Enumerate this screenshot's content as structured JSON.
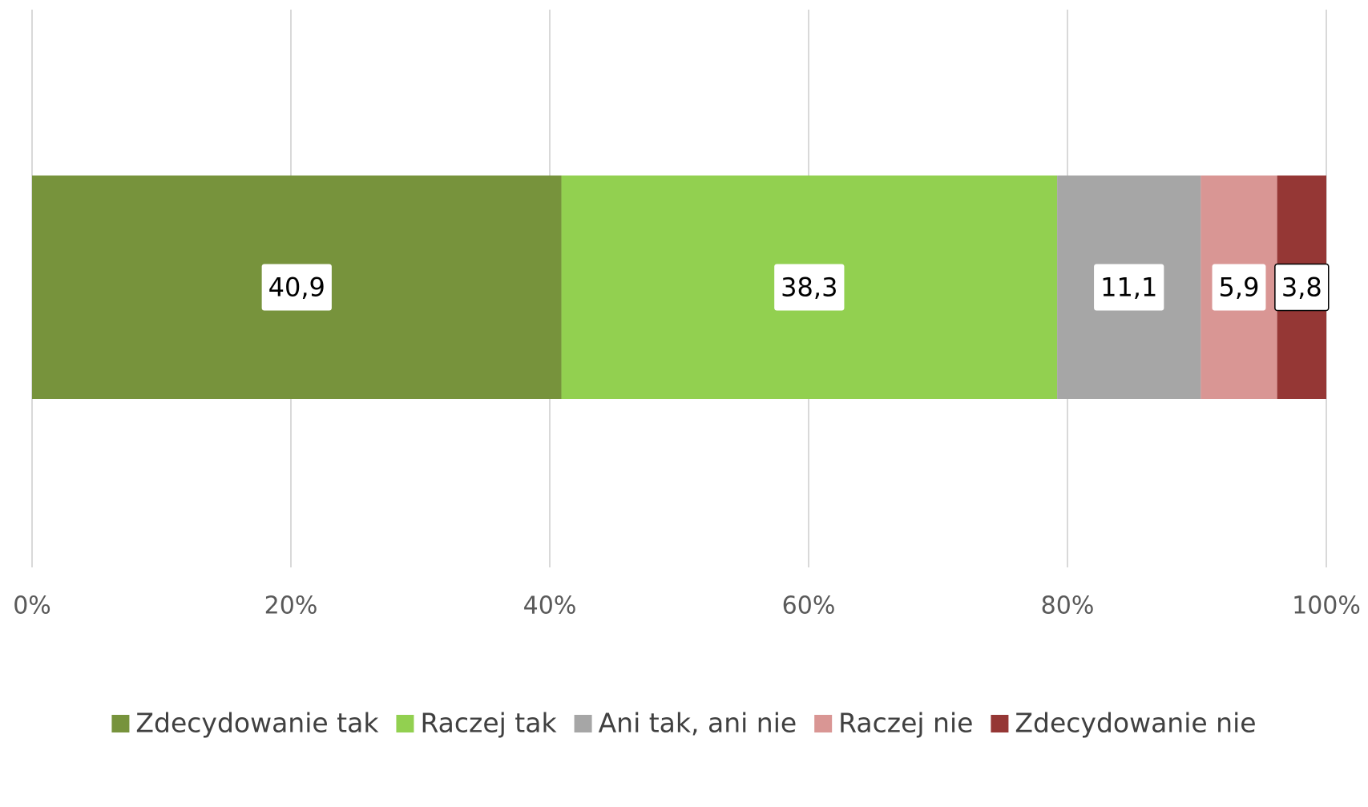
{
  "chart_data": {
    "type": "bar",
    "orientation": "horizontal",
    "stacked": true,
    "categories": [
      null
    ],
    "series": [
      {
        "name": "Zdecydowanie tak",
        "color": "#77933c",
        "values": [
          40.9
        ],
        "value_labels": [
          "40,9"
        ]
      },
      {
        "name": "Raczej tak",
        "color": "#92d050",
        "values": [
          38.3
        ],
        "value_labels": [
          "38,3"
        ]
      },
      {
        "name": "Ani tak, ani nie",
        "color": "#a6a6a6",
        "values": [
          11.1
        ],
        "value_labels": [
          "11,1"
        ]
      },
      {
        "name": "Raczej nie",
        "color": "#d99694",
        "values": [
          5.9
        ],
        "value_labels": [
          "5,9"
        ]
      },
      {
        "name": "Zdecydowanie nie",
        "color": "#953735",
        "values": [
          3.8
        ],
        "value_labels": [
          "3,8"
        ]
      }
    ],
    "xlim": [
      0,
      100
    ],
    "xticks": [
      {
        "value": 0,
        "label": "0%"
      },
      {
        "value": 20,
        "label": "20%"
      },
      {
        "value": 40,
        "label": "40%"
      },
      {
        "value": 60,
        "label": "60%"
      },
      {
        "value": 80,
        "label": "80%"
      },
      {
        "value": 100,
        "label": "100%"
      }
    ],
    "grid": true,
    "legend": "bottom"
  }
}
